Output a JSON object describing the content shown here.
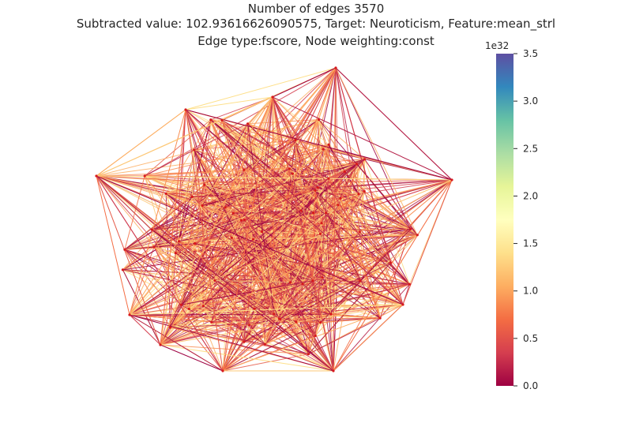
{
  "title_lines": [
    "Number of edges 3570",
    "Subtracted value: 102.93616626090575, Target: Neuroticism, Feature:mean_strl",
    "Edge type:fscore, Node weighting:const"
  ],
  "colorbar": {
    "colormap": "Spectral",
    "exponent_label": "1e32",
    "range": [
      0,
      3.5
    ],
    "ticks": [
      "0.0",
      "0.5",
      "1.0",
      "1.5",
      "2.0",
      "2.5",
      "3.0",
      "3.5"
    ],
    "stops": [
      "#9e0142",
      "#d53e4f",
      "#f46d43",
      "#fdae61",
      "#fee08b",
      "#ffffbf",
      "#e6f598",
      "#abdda4",
      "#66c2a5",
      "#3288bd",
      "#5e4fa2"
    ]
  },
  "graph": {
    "node_count": 85,
    "edge_count": 3570,
    "node_color": "#d7191c",
    "edge_palette": [
      "#9e0142",
      "#b51f48",
      "#d53e4f",
      "#e55a49",
      "#f46d43",
      "#f98d52",
      "#fdae61",
      "#fdc877",
      "#fee08b"
    ]
  }
}
